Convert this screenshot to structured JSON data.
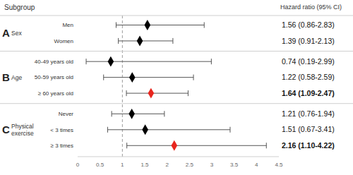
{
  "chart_data": {
    "type": "forest",
    "header": {
      "subgroup": "Subgroup",
      "estimate": "Hazard ratio (95% CI)"
    },
    "xlim": [
      0,
      4.5
    ],
    "xticks": [
      0,
      0.5,
      1,
      1.5,
      2,
      2.5,
      3,
      3.5,
      4,
      4.5
    ],
    "reference": 1,
    "color": "#000000",
    "marker": "diamond",
    "groups": [
      {
        "letter": "A",
        "name": "Sex",
        "rows": [
          {
            "label": "Men",
            "value": 1.56,
            "low": 0.86,
            "high": 2.83,
            "value_label": "1.56 (0.86-2.83)"
          },
          {
            "label": "Women",
            "value": 1.39,
            "low": 0.91,
            "high": 2.13,
            "value_label": "1.39 (0.91-2.13)"
          }
        ]
      },
      {
        "letter": "B",
        "name": "Age",
        "rows": [
          {
            "label": "40-49 years old",
            "value": 0.74,
            "low": 0.19,
            "high": 2.99,
            "value_label": "0.74 (0.19-2.99)"
          },
          {
            "label": "50-59 years old",
            "value": 1.22,
            "low": 0.58,
            "high": 2.59,
            "value_label": "1.22 (0.58-2.59)"
          },
          {
            "label": "≥ 60 years old",
            "value": 1.64,
            "low": 1.09,
            "high": 2.47,
            "value_label": "1.64 (1.09-2.47)",
            "color": "#e8261e"
          }
        ]
      },
      {
        "letter": "C",
        "name": "Physical exercise",
        "rows": [
          {
            "label": "Never",
            "value": 1.21,
            "low": 0.76,
            "high": 1.94,
            "value_label": "1.21 (0.76-1.94)"
          },
          {
            "label": "< 3 times",
            "value": 1.51,
            "low": 0.67,
            "high": 3.41,
            "value_label": "1.51 (0.67-3.41)"
          },
          {
            "label": "≥ 3 times",
            "value": 2.16,
            "low": 1.1,
            "high": 4.22,
            "value_label": "2.16 (1.10-4.22)",
            "color": "#e8261e"
          }
        ]
      }
    ]
  }
}
